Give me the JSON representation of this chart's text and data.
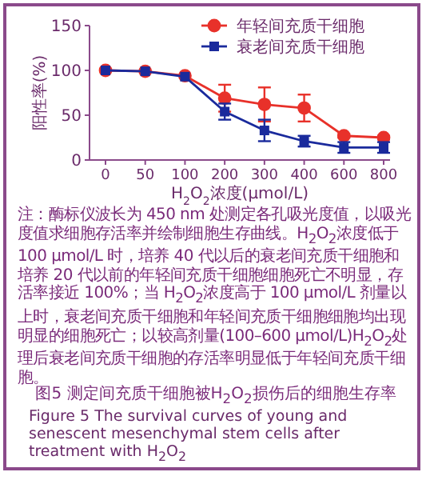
{
  "chart_data": {
    "type": "line",
    "xlabel": "H$_{2}$O$_{2}$浓度(μmol/L)",
    "ylabel": "阳性率(%)",
    "categories": [
      "0",
      "50",
      "100",
      "200",
      "300",
      "400",
      "600",
      "800"
    ],
    "series": [
      {
        "name": "年轻间充质干细胞",
        "color": "#e8312a",
        "marker": "circle",
        "values": [
          100,
          99,
          94,
          69,
          62,
          58,
          27,
          25
        ],
        "errors": [
          null,
          null,
          null,
          15,
          19,
          15,
          2,
          2
        ]
      },
      {
        "name": "衰老间充质干细胞",
        "color": "#1a2a9c",
        "marker": "square",
        "values": [
          100,
          99,
          93,
          54,
          33,
          21,
          14,
          14
        ],
        "errors": [
          null,
          null,
          null,
          9,
          12,
          6,
          6,
          6
        ]
      }
    ],
    "ylim": [
      0,
      150
    ],
    "yticks": [
      0,
      50,
      100,
      150
    ],
    "legend": "top right",
    "annotations": [
      "注：酶标仪波长为 450 nm 处测定各孔吸光度值，以吸光度值求细胞存活率并绘制细胞生存曲线。H$_{2}$O$_{2}$浓度低于 100 μmol/L 时，培养 40 代以后的衰老间充质干细胞和培养 20 代以前的年轻间充质干细胞细胞死亡不明显，存活率接近 100%；当 H$_{2}$O$_{2}$浓度高于 100 μmol/L 剂量以上时，衰老间充质干细胞和年轻间充质干细胞细胞均出现明显的细胞死亡；以较高剂量(100–600 μmol/L)H$_{2}$O$_{2}$处理后衰老间充质干细胞的存活率明显低于年轻间充质干细胞。",
      "图5  测定间充质干细胞被H$_{2}$O$_{2}$损伤后的细胞生存率",
      "Figure 5  The survival curves of young and senescent mesenchymal stem cells after treatment with H$_{2}$O$_{2}$"
    ]
  }
}
